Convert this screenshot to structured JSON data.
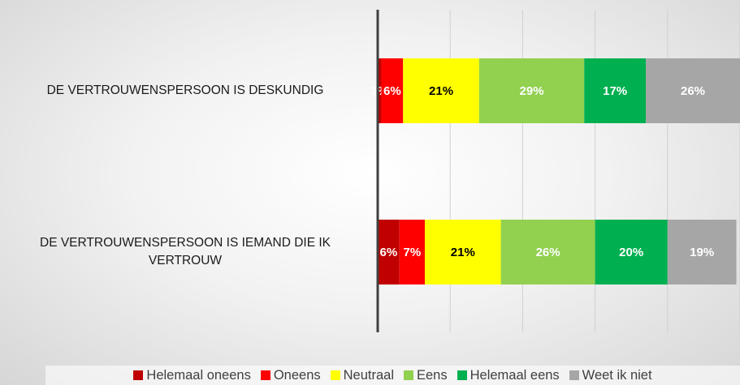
{
  "chart_data": {
    "type": "stacked-bar-horizontal",
    "categories": [
      "DE VERTROUWENSPERSOON IS DESKUNDIG",
      "DE VERTROUWENSPERSOON IS IEMAND DIE IK VERTROUW"
    ],
    "series": [
      {
        "name": "Helemaal oneens",
        "color": "#c00000",
        "values": [
          1,
          6
        ],
        "value_labels": [
          "1%",
          "6%"
        ]
      },
      {
        "name": "Oneens",
        "color": "#ff0000",
        "values": [
          6,
          7
        ],
        "value_labels": [
          "6%",
          "7%"
        ]
      },
      {
        "name": "Neutraal",
        "color": "#ffff00",
        "values": [
          21,
          21
        ],
        "value_labels": [
          "21%",
          "21%"
        ]
      },
      {
        "name": "Eens",
        "color": "#92d050",
        "values": [
          29,
          26
        ],
        "value_labels": [
          "29%",
          "26%"
        ]
      },
      {
        "name": "Helemaal eens",
        "color": "#00b050",
        "values": [
          17,
          20
        ],
        "value_labels": [
          "17%",
          "20%"
        ]
      },
      {
        "name": "Weet ik niet",
        "color": "#a6a6a6",
        "values": [
          26,
          19
        ],
        "value_labels": [
          "26%",
          "19%"
        ]
      }
    ],
    "xlim": [
      0,
      100
    ],
    "xticks": [
      0,
      20,
      40,
      60,
      80,
      100
    ],
    "grid": true
  }
}
